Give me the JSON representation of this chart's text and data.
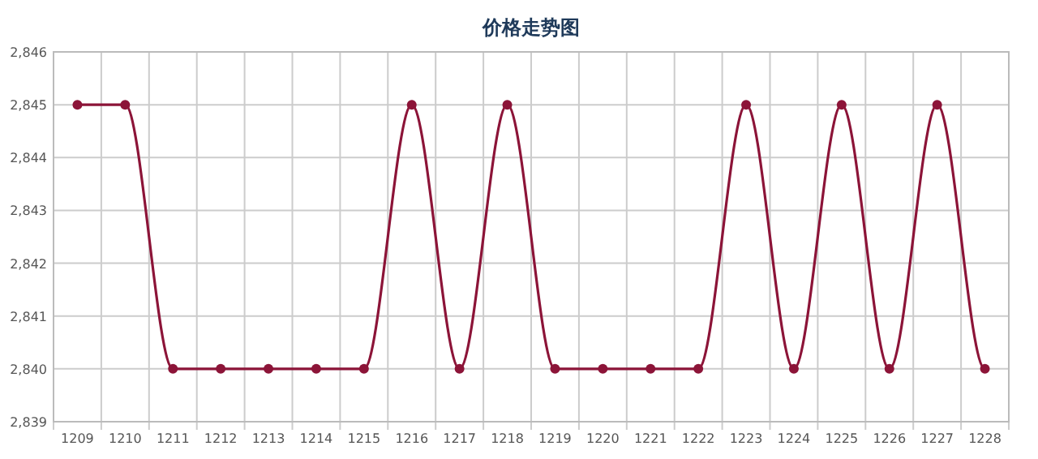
{
  "chart_data": {
    "type": "line",
    "title": "价格走势图",
    "categories": [
      "1209",
      "1210",
      "1211",
      "1212",
      "1213",
      "1214",
      "1215",
      "1216",
      "1217",
      "1218",
      "1219",
      "1220",
      "1221",
      "1222",
      "1223",
      "1224",
      "1225",
      "1226",
      "1227",
      "1228"
    ],
    "series": [
      {
        "color": "#8c1438",
        "values": [
          2845,
          2845,
          2840,
          2840,
          2840,
          2840,
          2840,
          2845,
          2840,
          2845,
          2840,
          2840,
          2840,
          2840,
          2845,
          2840,
          2845,
          2840,
          2845,
          2840
        ]
      }
    ],
    "ylim": [
      2839,
      2846
    ],
    "yticks": [
      {
        "value": 2839,
        "label": "2,839"
      },
      {
        "value": 2840,
        "label": "2,840"
      },
      {
        "value": 2841,
        "label": "2,841"
      },
      {
        "value": 2842,
        "label": "2,842"
      },
      {
        "value": 2843,
        "label": "2,843"
      },
      {
        "value": 2844,
        "label": "2,844"
      },
      {
        "value": 2845,
        "label": "2,845"
      },
      {
        "value": 2846,
        "label": "2,846"
      }
    ],
    "grid": true,
    "marker": "circle"
  }
}
